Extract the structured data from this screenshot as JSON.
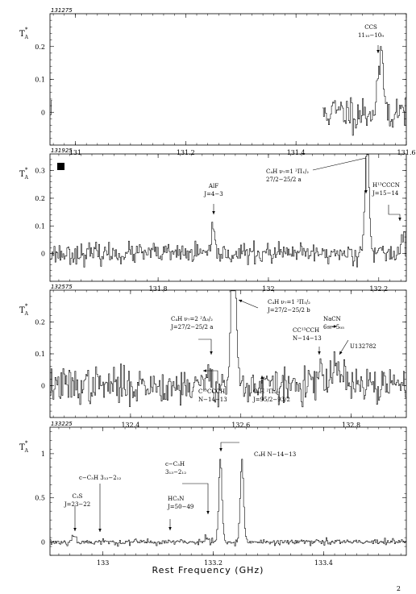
{
  "page_number": "2",
  "xlabel": "Rest Frequency (GHz)",
  "ylabel_main": "T",
  "ylabel_sup": "*",
  "ylabel_sub": "A",
  "chart_data": [
    {
      "type": "line",
      "id": "131275",
      "xlim": [
        130.954,
        131.6
      ],
      "ylim": [
        -0.1,
        0.3
      ],
      "xticks": [
        131,
        131.2,
        131.4,
        131.6
      ],
      "xtick_labels": [
        "131",
        "131.2",
        "131.4",
        "131.6"
      ],
      "yticks": [
        0,
        0.1,
        0.2
      ],
      "ytick_labels": [
        "0",
        "0.1",
        "0.2"
      ],
      "noise_rms": 0.028,
      "seed": 11,
      "coverage": [
        [
          130.954,
          130.958
        ],
        [
          131.448,
          131.6
        ]
      ],
      "lines": [
        {
          "freq": 131.551,
          "peak": 0.13,
          "width": 0.004
        },
        {
          "freq": 131.558,
          "peak": 0.09,
          "width": 0.003
        }
      ],
      "annotations": [
        {
          "text": "CCS",
          "text2": "11₁₀−10₉",
          "freq": 131.551
        }
      ],
      "marker_square": false
    },
    {
      "type": "line",
      "id": "131925",
      "xlim": [
        131.604,
        132.25
      ],
      "ylim": [
        -0.1,
        0.36
      ],
      "xticks": [
        131.8,
        132,
        132.2
      ],
      "xtick_labels": [
        "131.8",
        "132",
        "132.2"
      ],
      "yticks": [
        0,
        0.1,
        0.2,
        0.3
      ],
      "ytick_labels": [
        "0",
        "0.1",
        "0.2",
        "0.3"
      ],
      "noise_rms": 0.018,
      "seed": 23,
      "coverage": [
        [
          131.604,
          132.25
        ]
      ],
      "lines": [
        {
          "freq": 131.9,
          "peak": 0.07,
          "width": 0.003
        },
        {
          "freq": 132.177,
          "peak": 0.27,
          "width": 0.003
        },
        {
          "freq": 132.181,
          "peak": 0.24,
          "width": 0.003
        },
        {
          "freq": 132.245,
          "peak": 0.09,
          "width": 0.003
        }
      ],
      "annotations": [
        {
          "text": "AlF",
          "text2": "J=4−3",
          "freq": 131.9
        },
        {
          "text": "C₄H ν₇=1 ²Π₁/₂",
          "text2": "27/2−25/2 a",
          "freq": 132.178
        },
        {
          "text": "H¹³CCCN",
          "text2": "J=15−14",
          "freq": 132.245
        }
      ],
      "marker_square": true
    },
    {
      "type": "line",
      "id": "132575",
      "xlim": [
        132.254,
        132.9
      ],
      "ylim": [
        -0.1,
        0.3
      ],
      "xticks": [
        132.4,
        132.6,
        132.8
      ],
      "xtick_labels": [
        "132.4",
        "132.6",
        "132.8"
      ],
      "yticks": [
        0,
        0.1,
        0.2
      ],
      "ytick_labels": [
        "0",
        "0.1",
        "0.2"
      ],
      "noise_rms": 0.028,
      "seed": 37,
      "coverage": [
        [
          132.254,
          132.9
        ]
      ],
      "lines": [
        {
          "freq": 132.584,
          "peak": 0.34,
          "width": 0.003
        },
        {
          "freq": 132.59,
          "peak": 0.3,
          "width": 0.003
        },
        {
          "freq": 132.54,
          "peak": 0.05,
          "width": 0.004
        },
        {
          "freq": 132.745,
          "peak": 0.05,
          "width": 0.004
        },
        {
          "freq": 132.77,
          "peak": 0.07,
          "width": 0.004
        },
        {
          "freq": 132.782,
          "peak": 0.06,
          "width": 0.004
        }
      ],
      "annotations": [
        {
          "text": "C₄H ν₇=2 ²Δ₃/₂",
          "text2": "J=27/2−25/2 a",
          "freq": 132.54
        },
        {
          "text": "C₄H ν₇=1 ²Π₁/₂",
          "text2": "J=27/2−25/2 b",
          "freq": 132.584
        },
        {
          "text": "CC¹³CCH",
          "text2": "N−14−13",
          "freq": 132.745
        },
        {
          "text": "NaCN",
          "text2": "6₁₆−5₀₅",
          "freq": 132.77
        },
        {
          "text": "U132782",
          "text2": "",
          "freq": 132.782
        },
        {
          "text": "C¹³CCCH",
          "text2": "N−14−13",
          "freq": 132.56
        },
        {
          "text": "C₆H ²Π₃/₂",
          "text2": "J=95/2−93/2",
          "freq": 132.63
        }
      ],
      "marker_square": false
    },
    {
      "type": "line",
      "id": "133225",
      "xlim": [
        132.904,
        133.55
      ],
      "ylim": [
        -0.15,
        1.3
      ],
      "xticks": [
        133,
        133.2,
        133.4
      ],
      "xtick_labels": [
        "133",
        "133.2",
        "133.4"
      ],
      "yticks": [
        0,
        0.5,
        1
      ],
      "ytick_labels": [
        "0",
        "0.5",
        "1"
      ],
      "noise_rms": 0.018,
      "seed": 53,
      "coverage": [
        [
          132.904,
          133.55
        ]
      ],
      "lines": [
        {
          "freq": 133.213,
          "peak": 0.93,
          "width": 0.003
        },
        {
          "freq": 133.252,
          "peak": 0.93,
          "width": 0.003
        },
        {
          "freq": 132.948,
          "peak": 0.07,
          "width": 0.004
        },
        {
          "freq": 133.186,
          "peak": 0.05,
          "width": 0.004
        }
      ],
      "annotations": [
        {
          "text": "C₃S",
          "text2": "J=23−22",
          "freq": 132.948
        },
        {
          "text": "c−C₃H  3₁₃−2₁₂",
          "text2": "",
          "freq": 133.002
        },
        {
          "text": "c−C₃H",
          "text2": "3₁₃−2₁₂",
          "freq": 133.186
        },
        {
          "text": "HC₅N",
          "text2": "J=50−49",
          "freq": 133.121
        },
        {
          "text": "C₄H  N−14−13",
          "text2": "",
          "freq": 133.232
        }
      ],
      "marker_square": false
    }
  ]
}
